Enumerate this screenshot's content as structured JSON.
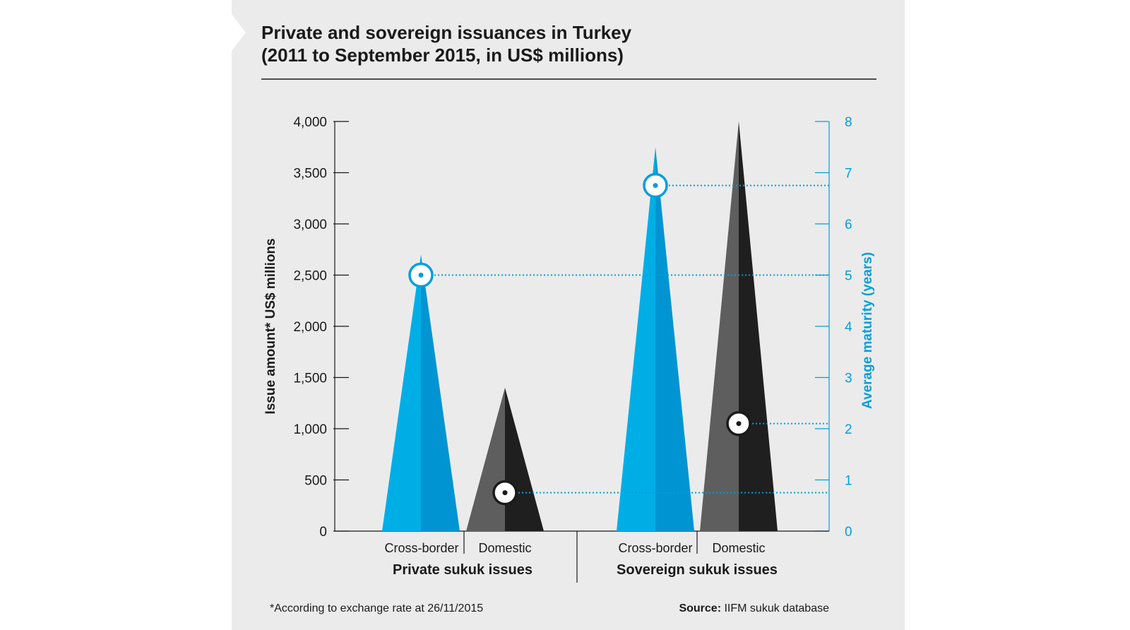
{
  "title_line1": "Private and sovereign issuances in Turkey",
  "title_line2": "(2011 to September 2015, in US$ millions)",
  "footnote": "*According to exchange rate at 26/11/2015",
  "source_label": "Source:",
  "source_text": "IIFM sukuk database",
  "chart_data": {
    "type": "bar",
    "ylabel": "Issue amount* US$ millions",
    "y2label": "Average maturity (years)",
    "ylim": [
      0,
      4000
    ],
    "y2lim": [
      0,
      8
    ],
    "yticks": [
      "0",
      "500",
      "1,000",
      "1,500",
      "2,000",
      "2,500",
      "3,000",
      "3,500",
      "4,000"
    ],
    "yticks_values": [
      0,
      500,
      1000,
      1500,
      2000,
      2500,
      3000,
      3500,
      4000
    ],
    "y2ticks": [
      "0",
      "1",
      "2",
      "3",
      "4",
      "5",
      "6",
      "7",
      "8"
    ],
    "y2ticks_values": [
      0,
      1,
      2,
      3,
      4,
      5,
      6,
      7,
      8
    ],
    "groups": [
      "Private sukuk issues",
      "Sovereign sukuk issues"
    ],
    "categories": [
      "Cross-border",
      "Domestic",
      "Cross-border",
      "Domestic"
    ],
    "series": [
      {
        "values": [
          2700,
          1400,
          3750,
          4000
        ]
      },
      {
        "values": [
          5.0,
          0.75,
          6.75,
          2.1
        ]
      }
    ],
    "colors": {
      "cross_border": "#00aee6",
      "cross_border_shade": "#0095d2",
      "domestic": "#5e5e5e",
      "domestic_shade": "#1f1f1f",
      "maturity_line": "#009fdb"
    },
    "grid": false
  }
}
